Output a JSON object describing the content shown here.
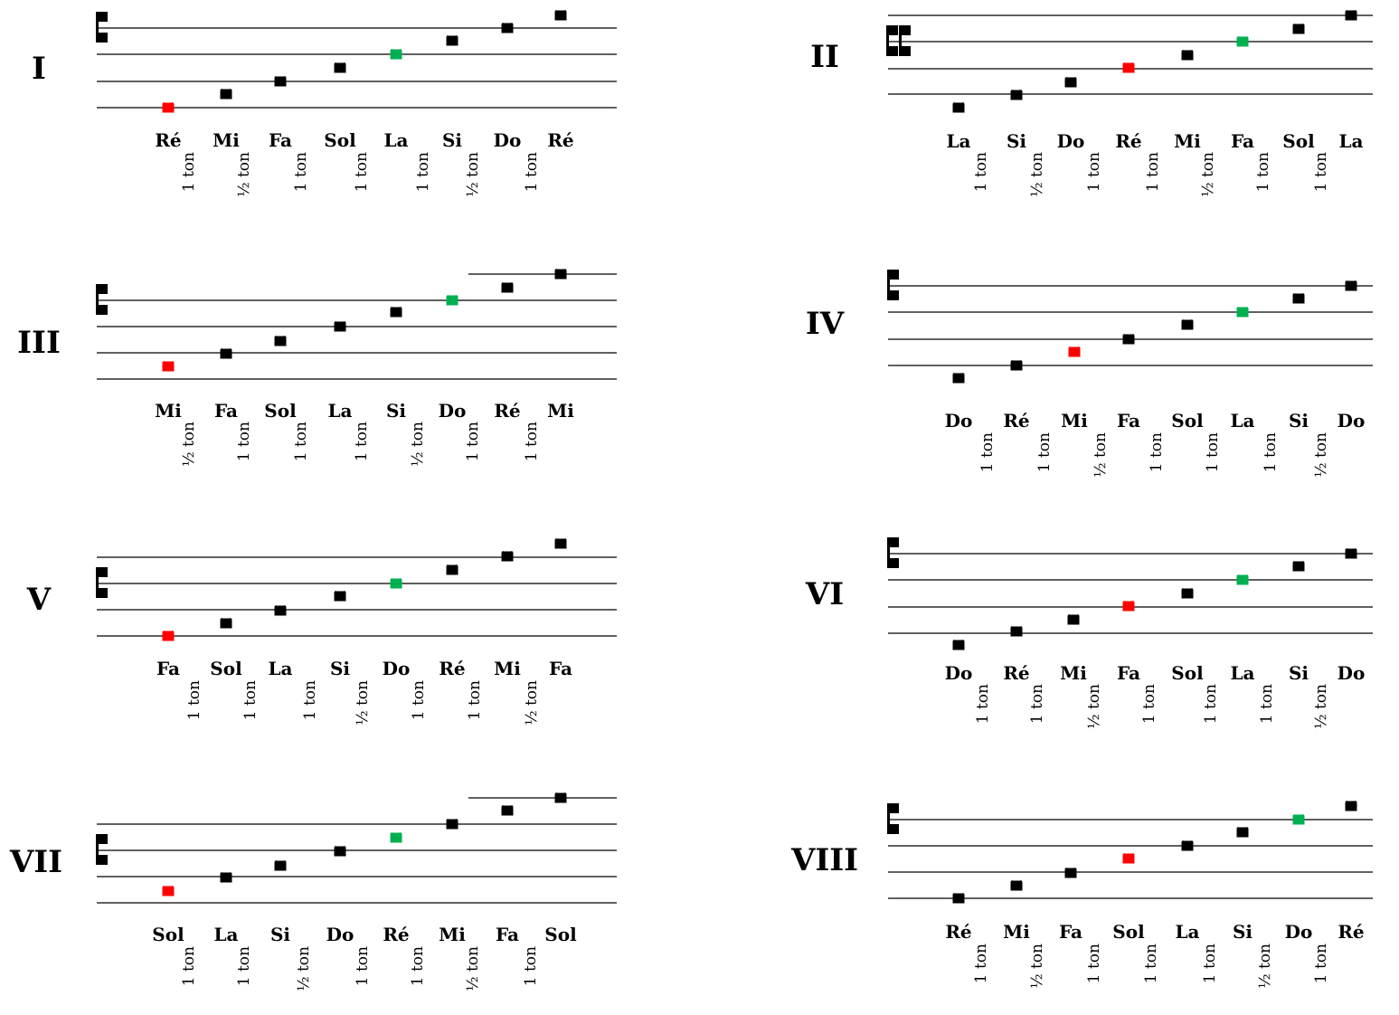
{
  "colors": {
    "final": "#ff0000",
    "dominant": "#00b050",
    "note": "#000000",
    "staff": "#000000"
  },
  "modes": [
    {
      "numeral": "I",
      "notes": [
        "Ré",
        "Mi",
        "Fa",
        "Sol",
        "La",
        "Si",
        "Do",
        "Ré"
      ],
      "intervals": [
        "1 ton",
        "½ ton",
        "1 ton",
        "1 ton",
        "1 ton",
        "½ ton",
        "1 ton"
      ],
      "final_note_index": 0,
      "dominant_note_index": 4
    },
    {
      "numeral": "II",
      "notes": [
        "La",
        "Si",
        "Do",
        "Ré",
        "Mi",
        "Fa",
        "Sol",
        "La"
      ],
      "intervals": [
        "1 ton",
        "½ ton",
        "1 ton",
        "1 ton",
        "½ ton",
        "1 ton",
        "1 ton"
      ],
      "final_note_index": 3,
      "dominant_note_index": 5
    },
    {
      "numeral": "III",
      "notes": [
        "Mi",
        "Fa",
        "Sol",
        "La",
        "Si",
        "Do",
        "Ré",
        "Mi"
      ],
      "intervals": [
        "½ ton",
        "1 ton",
        "1 ton",
        "1 ton",
        "½ ton",
        "1 ton",
        "1 ton"
      ],
      "final_note_index": 0,
      "dominant_note_index": 5
    },
    {
      "numeral": "IV",
      "notes": [
        "Do",
        "Ré",
        "Mi",
        "Fa",
        "Sol",
        "La",
        "Si",
        "Do"
      ],
      "intervals": [
        "1 ton",
        "1 ton",
        "½ ton",
        "1 ton",
        "1 ton",
        "1 ton",
        "½ ton"
      ],
      "final_note_index": 2,
      "dominant_note_index": 5
    },
    {
      "numeral": "V",
      "notes": [
        "Fa",
        "Sol",
        "La",
        "Si",
        "Do",
        "Ré",
        "Mi",
        "Fa"
      ],
      "intervals": [
        "1 ton",
        "1 ton",
        "1 ton",
        "½ ton",
        "1 ton",
        "1 ton",
        "½ ton"
      ],
      "final_note_index": 0,
      "dominant_note_index": 4
    },
    {
      "numeral": "VI",
      "notes": [
        "Do",
        "Ré",
        "Mi",
        "Fa",
        "Sol",
        "La",
        "Si",
        "Do"
      ],
      "intervals": [
        "1 ton",
        "1 ton",
        "½ ton",
        "1 ton",
        "1 ton",
        "1 ton",
        "½ ton"
      ],
      "final_note_index": 3,
      "dominant_note_index": 5
    },
    {
      "numeral": "VII",
      "notes": [
        "Sol",
        "La",
        "Si",
        "Do",
        "Ré",
        "Mi",
        "Fa",
        "Sol"
      ],
      "intervals": [
        "1 ton",
        "1 ton",
        "½ ton",
        "1 ton",
        "1 ton",
        "½ ton",
        "1 ton"
      ],
      "final_note_index": 0,
      "dominant_note_index": 4
    },
    {
      "numeral": "VIII",
      "notes": [
        "Ré",
        "Mi",
        "Fa",
        "Sol",
        "La",
        "Si",
        "Do",
        "Ré"
      ],
      "intervals": [
        "1 ton",
        "½ ton",
        "1 ton",
        "1 ton",
        "1 ton",
        "½ ton",
        "1 ton"
      ],
      "final_note_index": 3,
      "dominant_note_index": 6
    }
  ]
}
